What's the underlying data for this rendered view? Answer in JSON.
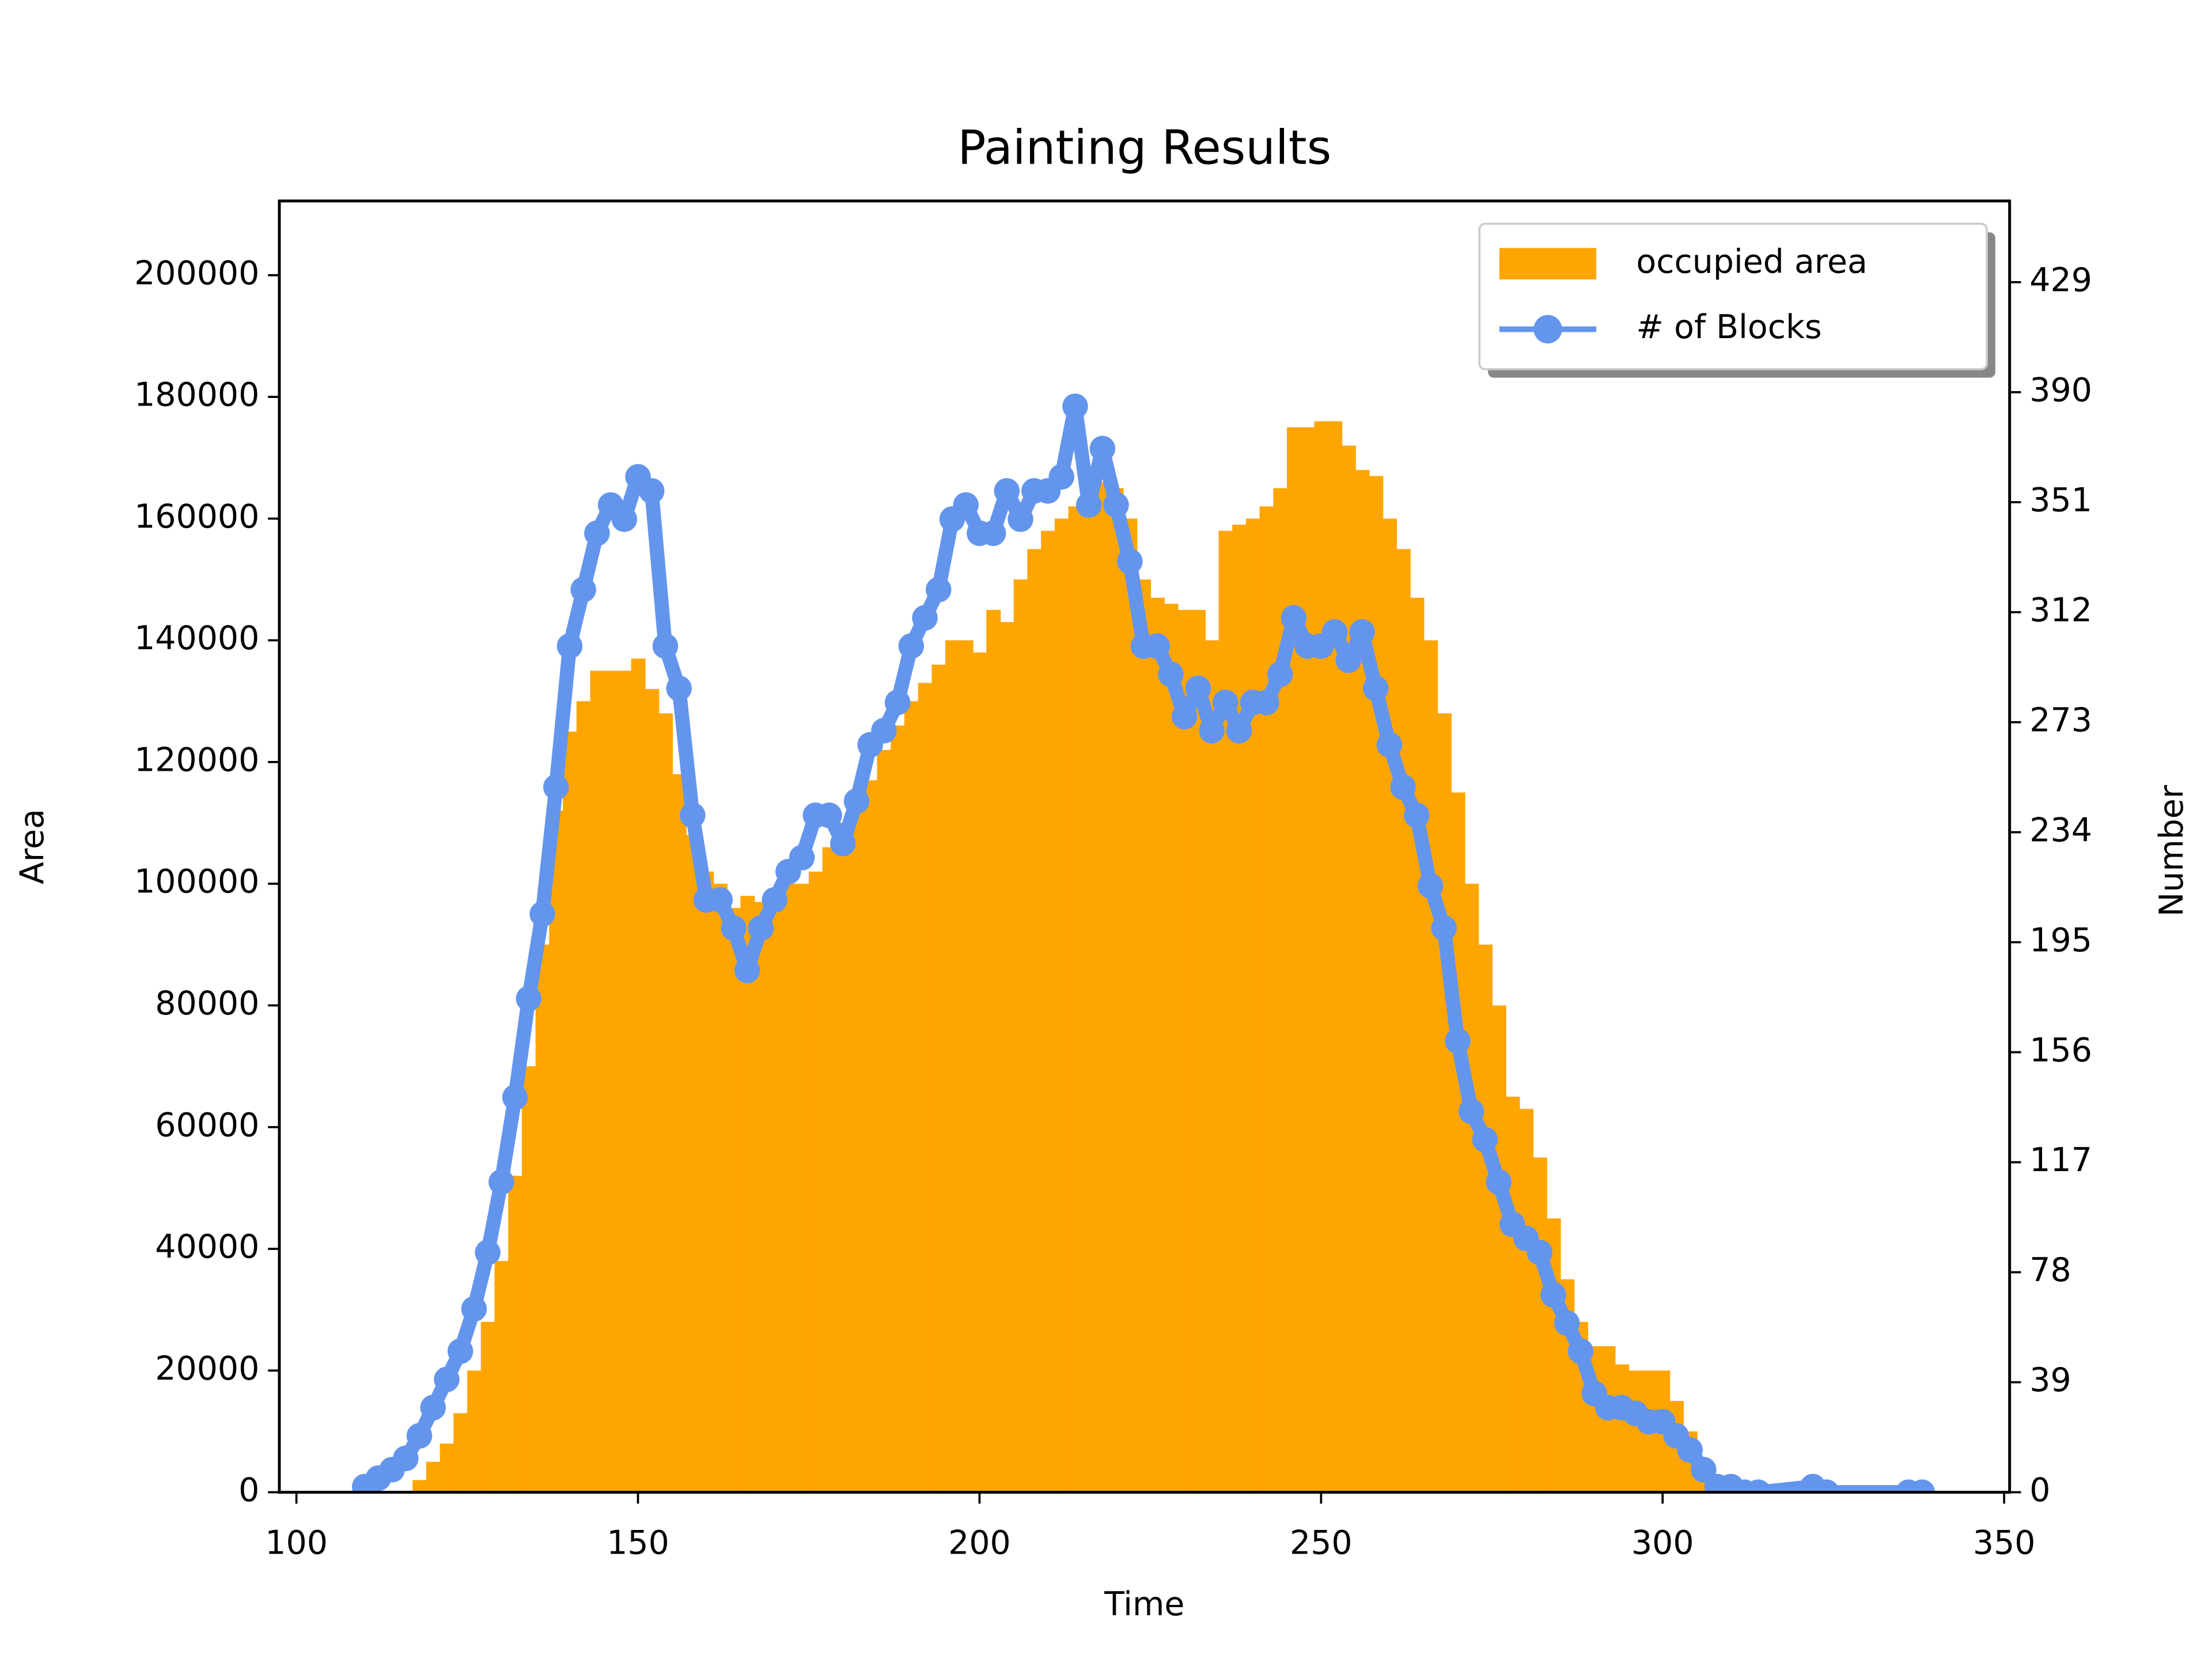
{
  "chart_data": {
    "type": "combo",
    "title": "Painting Results",
    "xlabel": "Time",
    "ylabel": "Area",
    "y2label": "Number",
    "xlim": [
      97.5,
      350.8
    ],
    "xticks": [
      100,
      150,
      200,
      250,
      300,
      350
    ],
    "ylim": [
      0,
      212200
    ],
    "yticks": [
      0,
      20000,
      40000,
      60000,
      80000,
      100000,
      120000,
      140000,
      160000,
      180000,
      200000
    ],
    "y2lim": [
      0,
      457.8
    ],
    "y2ticks": [
      0,
      39,
      78,
      117,
      156,
      195,
      234,
      273,
      312,
      351,
      390,
      429
    ],
    "legend": "upper right",
    "series": [
      {
        "name": "occupied area",
        "type": "bar",
        "color": "#ffa500",
        "x": [
          118,
          120,
          122,
          124,
          126,
          128,
          130,
          132,
          134,
          136,
          138,
          140,
          142,
          144,
          146,
          148,
          150,
          152,
          154,
          156,
          158,
          160,
          162,
          164,
          166,
          168,
          170,
          172,
          174,
          176,
          178,
          180,
          182,
          184,
          186,
          188,
          190,
          192,
          194,
          196,
          198,
          200,
          202,
          204,
          206,
          208,
          210,
          212,
          214,
          216,
          218,
          220,
          222,
          224,
          226,
          228,
          230,
          232,
          234,
          236,
          238,
          240,
          242,
          244,
          246,
          248,
          250,
          252,
          254,
          256,
          258,
          260,
          262,
          264,
          266,
          268,
          270,
          272,
          274,
          276,
          278,
          280,
          282,
          284,
          286,
          288,
          290,
          292,
          294,
          296,
          298,
          300,
          302,
          304,
          306
        ],
        "values": [
          2000,
          5000,
          8000,
          13000,
          20000,
          28000,
          38000,
          52000,
          70000,
          90000,
          112000,
          125000,
          130000,
          135000,
          135000,
          135000,
          137000,
          132000,
          128000,
          118000,
          108000,
          102000,
          100000,
          96000,
          98000,
          97000,
          98000,
          100000,
          100000,
          102000,
          106000,
          110000,
          113000,
          117000,
          122000,
          126000,
          130000,
          133000,
          136000,
          140000,
          140000,
          138000,
          145000,
          143000,
          150000,
          155000,
          158000,
          160000,
          162000,
          163000,
          166000,
          165000,
          160000,
          150000,
          147000,
          146000,
          145000,
          145000,
          140000,
          158000,
          159000,
          160000,
          162000,
          165000,
          175000,
          175000,
          176000,
          176000,
          172000,
          168000,
          167000,
          160000,
          155000,
          147000,
          140000,
          128000,
          115000,
          100000,
          90000,
          80000,
          65000,
          63000,
          55000,
          45000,
          35000,
          28000,
          24000,
          24000,
          21000,
          20000,
          20000,
          20000,
          15000,
          10000,
          4000
        ]
      },
      {
        "name": "# of Blocks",
        "type": "line",
        "axis": "y2",
        "color": "#6495ed",
        "x": [
          110,
          112,
          114,
          116,
          118,
          120,
          122,
          124,
          126,
          128,
          130,
          132,
          134,
          136,
          138,
          140,
          142,
          144,
          146,
          148,
          150,
          152,
          154,
          156,
          158,
          160,
          162,
          164,
          166,
          168,
          170,
          172,
          174,
          176,
          178,
          180,
          182,
          184,
          186,
          188,
          190,
          192,
          194,
          196,
          198,
          200,
          202,
          204,
          206,
          208,
          210,
          212,
          214,
          216,
          218,
          220,
          222,
          224,
          226,
          228,
          230,
          232,
          234,
          236,
          238,
          240,
          242,
          244,
          246,
          248,
          250,
          252,
          254,
          256,
          258,
          260,
          262,
          264,
          266,
          268,
          270,
          272,
          274,
          276,
          278,
          280,
          282,
          284,
          286,
          288,
          290,
          292,
          294,
          296,
          298,
          300,
          302,
          304,
          306,
          308,
          310,
          312,
          314,
          322,
          324,
          336,
          338
        ],
        "values": [
          2,
          5,
          8,
          12,
          20,
          30,
          40,
          50,
          65,
          85,
          110,
          140,
          175,
          205,
          250,
          300,
          320,
          340,
          350,
          345,
          360,
          355,
          300,
          285,
          240,
          210,
          210,
          200,
          185,
          200,
          210,
          220,
          225,
          240,
          240,
          230,
          245,
          265,
          270,
          280,
          300,
          310,
          320,
          345,
          350,
          340,
          340,
          355,
          345,
          355,
          355,
          360,
          385,
          350,
          370,
          350,
          330,
          300,
          300,
          290,
          275,
          285,
          270,
          280,
          270,
          280,
          280,
          290,
          310,
          300,
          300,
          305,
          295,
          305,
          285,
          265,
          250,
          240,
          215,
          200,
          160,
          135,
          125,
          110,
          95,
          90,
          85,
          70,
          60,
          50,
          35,
          30,
          30,
          28,
          25,
          25,
          20,
          15,
          8,
          2,
          2,
          0,
          0,
          2,
          0,
          0,
          0
        ]
      }
    ]
  }
}
